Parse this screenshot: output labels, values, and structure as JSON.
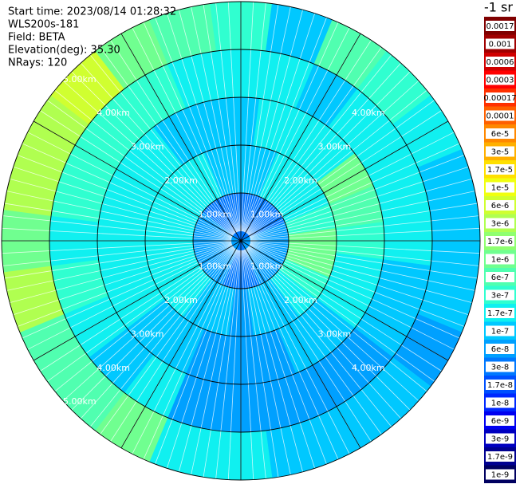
{
  "chart_data": {
    "type": "ppi",
    "header": [
      "Start time: 2023/08/14 01:28:32",
      "WLS200s-181",
      "Field: BETA",
      "Elevation(deg): 35.30",
      "NRays: 120"
    ],
    "colorbar_title": "-1 sr",
    "azimuth_deg": [
      0,
      15,
      30,
      45,
      60,
      75,
      90,
      105,
      120,
      135,
      150,
      165,
      180,
      195,
      210,
      225,
      240,
      255,
      270,
      285,
      300,
      315,
      330,
      345
    ],
    "range_edges_km": [
      0,
      1,
      2,
      3,
      4,
      5
    ],
    "values": [
      [
        3e-08,
        1e-07,
        1e-07,
        1.7e-07,
        3e-07
      ],
      [
        3e-08,
        1e-07,
        1.7e-07,
        1.7e-07,
        1e-07
      ],
      [
        3e-08,
        1.7e-07,
        1.7e-07,
        1e-07,
        6e-07
      ],
      [
        3e-08,
        1.7e-07,
        1.7e-07,
        1.7e-07,
        3e-07
      ],
      [
        3e-08,
        1.7e-07,
        1e-06,
        1.7e-07,
        1.7e-07
      ],
      [
        6e-08,
        3e-07,
        6e-07,
        1.7e-07,
        1e-07
      ],
      [
        6e-08,
        1e-06,
        3e-07,
        1.7e-07,
        1e-07
      ],
      [
        6e-08,
        1e-06,
        1.7e-07,
        1e-07,
        1e-07
      ],
      [
        6e-08,
        3e-07,
        1.7e-07,
        1e-07,
        6e-08
      ],
      [
        6e-08,
        1.7e-07,
        1e-07,
        6e-08,
        1e-07
      ],
      [
        6e-08,
        1e-07,
        1e-07,
        6e-08,
        1e-07
      ],
      [
        3e-08,
        1e-07,
        6e-08,
        6e-08,
        1e-07
      ],
      [
        3e-08,
        6e-08,
        6e-08,
        6e-08,
        1.7e-07
      ],
      [
        3e-08,
        1e-07,
        6e-08,
        6e-08,
        1.7e-07
      ],
      [
        6e-08,
        1e-07,
        1e-07,
        1.7e-07,
        1e-06
      ],
      [
        6e-08,
        1.7e-07,
        1e-07,
        1e-07,
        6e-07
      ],
      [
        6e-08,
        1.7e-07,
        1.7e-07,
        1.7e-07,
        6e-07
      ],
      [
        6e-08,
        1.7e-07,
        1.7e-07,
        3e-07,
        3e-06
      ],
      [
        6e-08,
        1.7e-07,
        1.7e-07,
        1.7e-07,
        1e-06
      ],
      [
        6e-08,
        1.7e-07,
        1.7e-07,
        3e-07,
        3e-06
      ],
      [
        6e-08,
        1.7e-07,
        1.7e-07,
        3e-07,
        3e-06
      ],
      [
        3e-08,
        1.7e-07,
        1.7e-07,
        3e-07,
        6e-06
      ],
      [
        3e-08,
        1.7e-07,
        1e-07,
        3e-07,
        1e-06
      ],
      [
        3e-08,
        1e-07,
        1e-07,
        1.7e-07,
        6e-07
      ]
    ],
    "range_rings": [
      {
        "value": 1,
        "label": "1.00km"
      },
      {
        "value": 2,
        "label": "2.00km"
      },
      {
        "value": 3,
        "label": "3.00km"
      },
      {
        "value": 4,
        "label": "4.00km"
      },
      {
        "value": 5,
        "label": "5.00km"
      }
    ],
    "colorbar_levels": [
      {
        "value": 0.0017,
        "label": "0.0017"
      },
      {
        "value": 0.001,
        "label": "0.001"
      },
      {
        "value": 0.0006,
        "label": "0.0006"
      },
      {
        "value": 0.0003,
        "label": "0.0003"
      },
      {
        "value": 0.00017,
        "label": "0.00017"
      },
      {
        "value": 0.0001,
        "label": "0.0001"
      },
      {
        "value": 6e-05,
        "label": "6e-5"
      },
      {
        "value": 3e-05,
        "label": "3e-5"
      },
      {
        "value": 1.7e-05,
        "label": "1.7e-5"
      },
      {
        "value": 1e-05,
        "label": "1e-5"
      },
      {
        "value": 6e-06,
        "label": "6e-6"
      },
      {
        "value": 3e-06,
        "label": "3e-6"
      },
      {
        "value": 1.7e-06,
        "label": "1.7e-6"
      },
      {
        "value": 1e-06,
        "label": "1e-6"
      },
      {
        "value": 6e-07,
        "label": "6e-7"
      },
      {
        "value": 3e-07,
        "label": "3e-7"
      },
      {
        "value": 1.7e-07,
        "label": "1.7e-7"
      },
      {
        "value": 1e-07,
        "label": "1e-7"
      },
      {
        "value": 6e-08,
        "label": "6e-8"
      },
      {
        "value": 3e-08,
        "label": "3e-8"
      },
      {
        "value": 1.7e-08,
        "label": "1.7e-8"
      },
      {
        "value": 1e-08,
        "label": "1e-8"
      },
      {
        "value": 6e-09,
        "label": "6e-9"
      },
      {
        "value": 3e-09,
        "label": "3e-9"
      },
      {
        "value": 1.7e-09,
        "label": "1.7e-9"
      },
      {
        "value": 1e-09,
        "label": "1e-9"
      }
    ],
    "colorbar_colors": [
      "#800000",
      "#a00000",
      "#d00000",
      "#ff0000",
      "#ff3000",
      "#ff6000",
      "#ff8800",
      "#ffb000",
      "#ffe000",
      "#f0ff10",
      "#d0ff30",
      "#b0ff50",
      "#90ff70",
      "#70ff90",
      "#50ffb0",
      "#30ffd0",
      "#10f0f0",
      "#00c8ff",
      "#00a0ff",
      "#0078ff",
      "#0050ff",
      "#0028ff",
      "#0000f0",
      "#0000c0",
      "#000090",
      "#000060"
    ]
  }
}
